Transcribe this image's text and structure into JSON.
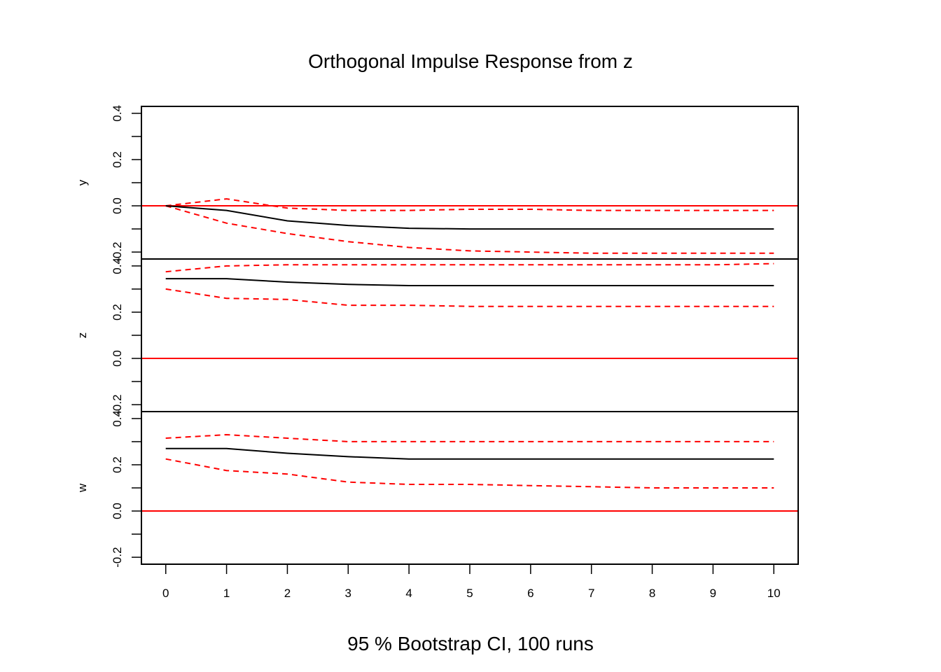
{
  "chart_data": {
    "type": "line",
    "title": "Orthogonal Impulse Response from z",
    "subtitle": "95 % Bootstrap CI,  100 runs",
    "x": [
      0,
      1,
      2,
      3,
      4,
      5,
      6,
      7,
      8,
      9,
      10
    ],
    "x_tick_labels": [
      "0",
      "1",
      "2",
      "3",
      "4",
      "5",
      "6",
      "7",
      "8",
      "9",
      "10"
    ],
    "xlim": [
      -0.4,
      10.4
    ],
    "ylim": [
      -0.23,
      0.43
    ],
    "y_ticks": [
      -0.2,
      0.0,
      0.2,
      0.4
    ],
    "y_tick_labels": [
      "-0.2",
      "0.0",
      "0.2",
      "0.4"
    ],
    "grid": false,
    "zero_line_color": "#ff0000",
    "response_color": "#000000",
    "ci_color": "#ff0000",
    "panels": [
      {
        "name": "y",
        "response": [
          0.0,
          -0.02,
          -0.065,
          -0.085,
          -0.097,
          -0.1,
          -0.1,
          -0.1,
          -0.1,
          -0.1,
          -0.1
        ],
        "upper": [
          0.0,
          0.03,
          -0.01,
          -0.02,
          -0.02,
          -0.015,
          -0.015,
          -0.02,
          -0.02,
          -0.02,
          -0.02
        ],
        "lower": [
          0.0,
          -0.075,
          -0.12,
          -0.155,
          -0.18,
          -0.195,
          -0.2,
          -0.205,
          -0.205,
          -0.205,
          -0.205
        ]
      },
      {
        "name": "z",
        "response": [
          0.345,
          0.345,
          0.33,
          0.32,
          0.315,
          0.315,
          0.315,
          0.315,
          0.315,
          0.315,
          0.315
        ],
        "upper": [
          0.375,
          0.4,
          0.405,
          0.405,
          0.405,
          0.405,
          0.405,
          0.405,
          0.405,
          0.405,
          0.41
        ],
        "lower": [
          0.3,
          0.26,
          0.255,
          0.23,
          0.23,
          0.225,
          0.225,
          0.225,
          0.225,
          0.225,
          0.225
        ]
      },
      {
        "name": "w",
        "response": [
          0.27,
          0.27,
          0.25,
          0.235,
          0.225,
          0.225,
          0.225,
          0.225,
          0.225,
          0.225,
          0.225
        ],
        "upper": [
          0.315,
          0.33,
          0.315,
          0.3,
          0.3,
          0.3,
          0.3,
          0.3,
          0.3,
          0.3,
          0.3
        ],
        "lower": [
          0.225,
          0.175,
          0.16,
          0.125,
          0.115,
          0.115,
          0.11,
          0.105,
          0.1,
          0.1,
          0.1
        ]
      }
    ]
  }
}
